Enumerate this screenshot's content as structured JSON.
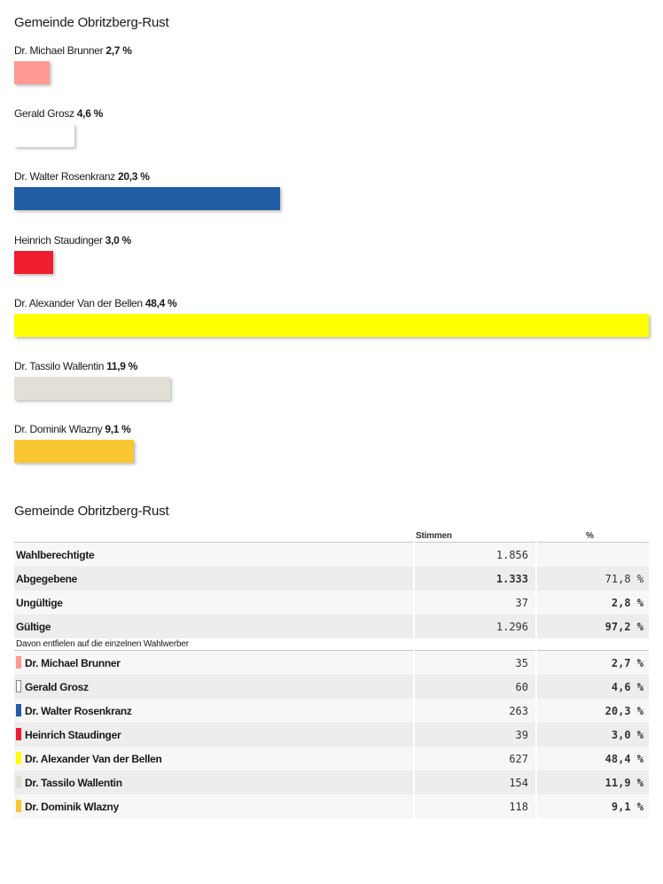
{
  "chart_title": "Gemeinde Obritzberg-Rust",
  "table_title": "Gemeinde Obritzberg-Rust",
  "chart_data": {
    "type": "bar",
    "orientation": "horizontal",
    "title": "Gemeinde Obritzberg-Rust",
    "categories": [
      "Dr. Michael Brunner",
      "Gerald Grosz",
      "Dr. Walter Rosenkranz",
      "Heinrich Staudinger",
      "Dr. Alexander Van der Bellen",
      "Dr. Tassilo Wallentin",
      "Dr. Dominik Wlazny"
    ],
    "values": [
      2.7,
      4.6,
      20.3,
      3.0,
      48.4,
      11.9,
      9.1
    ],
    "value_labels": [
      "2,7 %",
      "4,6 %",
      "20,3 %",
      "3,0 %",
      "48,4 %",
      "11,9 %",
      "9,1 %"
    ],
    "colors": [
      "#ff9a92",
      "#ffffff",
      "#225da5",
      "#ee1d2f",
      "#ffff00",
      "#e2e0d6",
      "#fac631"
    ],
    "xlim": [
      0,
      48.4
    ],
    "grid": false,
    "legend": "none"
  },
  "table": {
    "headers": {
      "name": "",
      "votes": "Stimmen",
      "pct": "%"
    },
    "summary_rows": [
      {
        "label": "Wahlberechtigte",
        "votes": "1.856",
        "pct": "",
        "bold_votes": false,
        "bold_pct": false
      },
      {
        "label": "Abgegebene",
        "votes": "1.333",
        "pct": "71,8 %",
        "bold_votes": true,
        "bold_pct": false
      },
      {
        "label": "Ungültige",
        "votes": "37",
        "pct": "2,8 %",
        "bold_votes": false,
        "bold_pct": true
      },
      {
        "label": "Gültige",
        "votes": "1.296",
        "pct": "97,2 %",
        "bold_votes": false,
        "bold_pct": true
      }
    ],
    "note": "Davon entfielen auf die einzelnen Wahlwerber",
    "candidate_rows": [
      {
        "label": "Dr. Michael Brunner",
        "votes": "35",
        "pct": "2,7 %",
        "color": "#ff9a92"
      },
      {
        "label": "Gerald Grosz",
        "votes": "60",
        "pct": "4,6 %",
        "color": "#ffffff"
      },
      {
        "label": "Dr. Walter Rosenkranz",
        "votes": "263",
        "pct": "20,3 %",
        "color": "#225da5"
      },
      {
        "label": "Heinrich Staudinger",
        "votes": "39",
        "pct": "3,0 %",
        "color": "#ee1d2f"
      },
      {
        "label": "Dr. Alexander Van der Bellen",
        "votes": "627",
        "pct": "48,4 %",
        "color": "#ffff00"
      },
      {
        "label": "Dr. Tassilo Wallentin",
        "votes": "154",
        "pct": "11,9 %",
        "color": "#e2e0d6"
      },
      {
        "label": "Dr. Dominik Wlazny",
        "votes": "118",
        "pct": "9,1 %",
        "color": "#fac631"
      }
    ]
  }
}
